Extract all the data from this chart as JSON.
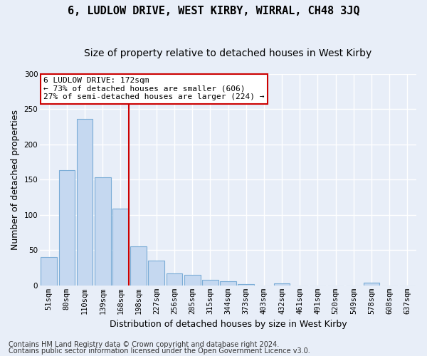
{
  "title": "6, LUDLOW DRIVE, WEST KIRBY, WIRRAL, CH48 3JQ",
  "subtitle": "Size of property relative to detached houses in West Kirby",
  "xlabel": "Distribution of detached houses by size in West Kirby",
  "ylabel": "Number of detached properties",
  "categories": [
    "51sqm",
    "80sqm",
    "110sqm",
    "139sqm",
    "168sqm",
    "198sqm",
    "227sqm",
    "256sqm",
    "285sqm",
    "315sqm",
    "344sqm",
    "373sqm",
    "403sqm",
    "432sqm",
    "461sqm",
    "491sqm",
    "520sqm",
    "549sqm",
    "578sqm",
    "608sqm",
    "637sqm"
  ],
  "values": [
    40,
    163,
    236,
    153,
    109,
    55,
    35,
    17,
    15,
    8,
    6,
    2,
    0,
    3,
    0,
    0,
    0,
    0,
    4,
    0,
    0
  ],
  "bar_color": "#c5d8f0",
  "bar_edge_color": "#7aacd6",
  "vline_color": "#cc0000",
  "vline_position": 4.45,
  "annotation_text": "6 LUDLOW DRIVE: 172sqm\n← 73% of detached houses are smaller (606)\n27% of semi-detached houses are larger (224) →",
  "annotation_box_facecolor": "#ffffff",
  "annotation_box_edgecolor": "#cc0000",
  "ylim": [
    0,
    300
  ],
  "yticks": [
    0,
    50,
    100,
    150,
    200,
    250,
    300
  ],
  "footer1": "Contains HM Land Registry data © Crown copyright and database right 2024.",
  "footer2": "Contains public sector information licensed under the Open Government Licence v3.0.",
  "bg_color": "#e8eef8",
  "plot_bg_color": "#e8eef8",
  "grid_color": "#ffffff",
  "title_fontsize": 11,
  "subtitle_fontsize": 10,
  "axis_label_fontsize": 9,
  "tick_fontsize": 7.5,
  "annotation_fontsize": 8,
  "footer_fontsize": 7
}
